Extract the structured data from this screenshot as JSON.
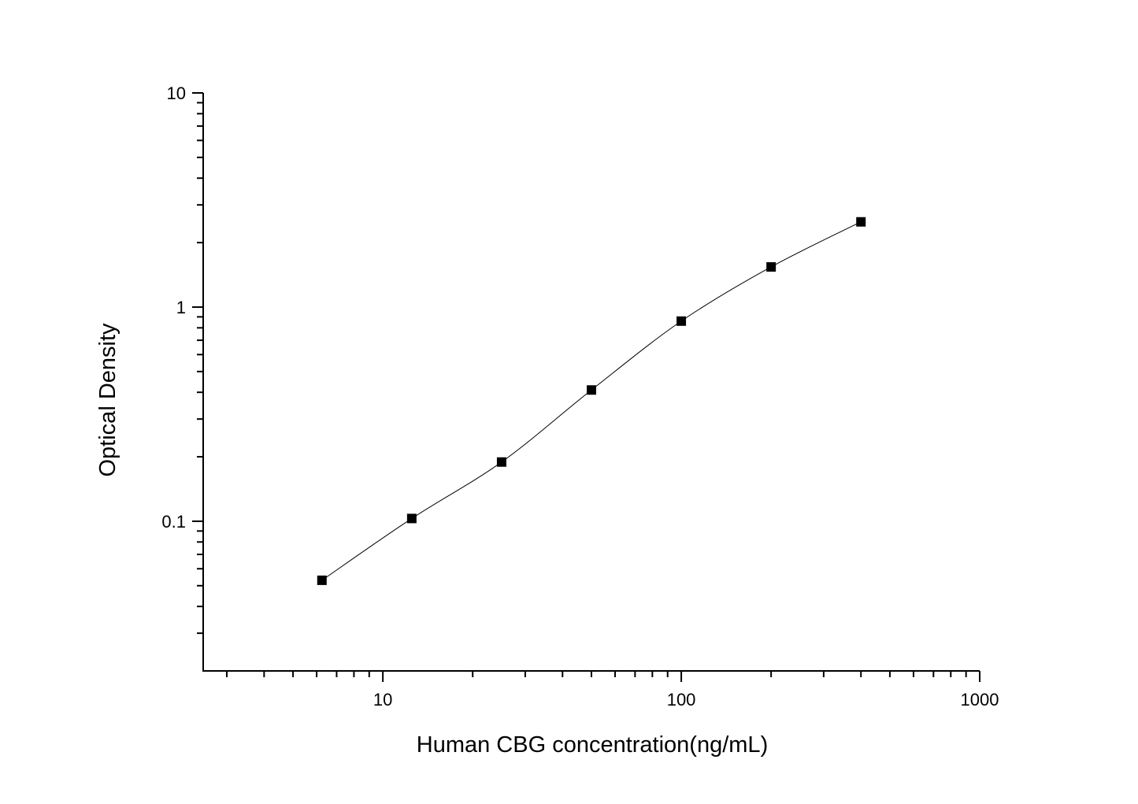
{
  "chart_data": {
    "type": "scatter",
    "title": "",
    "xlabel": "Human CBG concentration(ng/mL)",
    "ylabel": "Optical Density",
    "xscale": "log",
    "yscale": "log",
    "xlim": [
      2.5,
      1000
    ],
    "ylim": [
      0.02,
      10
    ],
    "x_ticks": [
      10,
      100,
      1000
    ],
    "x_tick_labels": [
      "10",
      "100",
      "1000"
    ],
    "y_ticks": [
      0.1,
      1,
      10
    ],
    "y_tick_labels": [
      "0.1",
      "1",
      "10"
    ],
    "grid": false,
    "legend": "none",
    "marker": "square",
    "fit_curve": true,
    "colors": {
      "points": "#000000",
      "curve": "#000000",
      "axes": "#000000"
    },
    "series": [
      {
        "x": [
          6.25,
          12.5,
          25,
          50,
          100,
          200,
          400
        ],
        "y": [
          0.053,
          0.103,
          0.189,
          0.41,
          0.86,
          1.54,
          2.5
        ]
      }
    ]
  }
}
